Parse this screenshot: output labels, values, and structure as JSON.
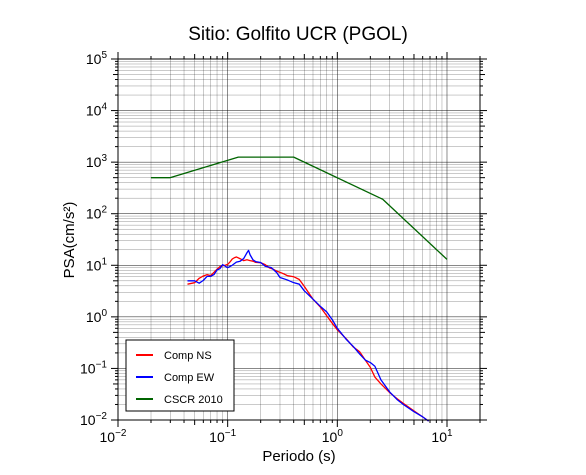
{
  "chart_data": {
    "type": "line",
    "title": "Sitio: Golfito UCR (PGOL)",
    "xlabel": "Periodo (s)",
    "ylabel": "PSA(cm/s²)",
    "x_scale": "log",
    "y_scale": "log",
    "xlim": [
      0.01,
      20
    ],
    "ylim": [
      0.01,
      100000
    ],
    "grid": true,
    "legend_position": "bottom-left",
    "x_ticks": [
      {
        "base": "10",
        "exp": "−2",
        "value": 0.01
      },
      {
        "base": "10",
        "exp": "−1",
        "value": 0.1
      },
      {
        "base": "10",
        "exp": "0",
        "value": 1
      },
      {
        "base": "10",
        "exp": "1",
        "value": 10
      }
    ],
    "y_ticks": [
      {
        "base": "10",
        "exp": "−2",
        "value": 0.01
      },
      {
        "base": "10",
        "exp": "−1",
        "value": 0.1
      },
      {
        "base": "10",
        "exp": "0",
        "value": 1
      },
      {
        "base": "10",
        "exp": "1",
        "value": 10
      },
      {
        "base": "10",
        "exp": "2",
        "value": 100
      },
      {
        "base": "10",
        "exp": "3",
        "value": 1000
      },
      {
        "base": "10",
        "exp": "4",
        "value": 10000
      },
      {
        "base": "10",
        "exp": "5",
        "value": 100000
      }
    ],
    "series": [
      {
        "name": "Comp NS",
        "color": "#ff0000",
        "points": [
          [
            0.043,
            4.3
          ],
          [
            0.05,
            4.6
          ],
          [
            0.055,
            5.6
          ],
          [
            0.06,
            6.2
          ],
          [
            0.065,
            6.6
          ],
          [
            0.07,
            6.3
          ],
          [
            0.075,
            7.3
          ],
          [
            0.08,
            8.4
          ],
          [
            0.085,
            9.4
          ],
          [
            0.09,
            9.8
          ],
          [
            0.095,
            10.0
          ],
          [
            0.1,
            10.4
          ],
          [
            0.105,
            11.6
          ],
          [
            0.11,
            13.2
          ],
          [
            0.115,
            14.0
          ],
          [
            0.12,
            14.5
          ],
          [
            0.13,
            13.4
          ],
          [
            0.14,
            12.3
          ],
          [
            0.15,
            12.8
          ],
          [
            0.16,
            12.3
          ],
          [
            0.17,
            12.0
          ],
          [
            0.18,
            11.4
          ],
          [
            0.2,
            11.2
          ],
          [
            0.22,
            10.3
          ],
          [
            0.24,
            8.9
          ],
          [
            0.26,
            8.4
          ],
          [
            0.28,
            7.7
          ],
          [
            0.3,
            7.3
          ],
          [
            0.32,
            6.9
          ],
          [
            0.35,
            6.3
          ],
          [
            0.4,
            6.0
          ],
          [
            0.45,
            5.3
          ],
          [
            0.5,
            3.9
          ],
          [
            0.6,
            2.2
          ],
          [
            0.7,
            1.55
          ],
          [
            0.8,
            1.05
          ],
          [
            0.9,
            0.75
          ],
          [
            1.0,
            0.56
          ],
          [
            1.2,
            0.38
          ],
          [
            1.4,
            0.26
          ],
          [
            1.6,
            0.21
          ],
          [
            1.8,
            0.145
          ],
          [
            2.0,
            0.105
          ],
          [
            2.2,
            0.068
          ],
          [
            2.5,
            0.05
          ],
          [
            3.0,
            0.034
          ],
          [
            3.5,
            0.026
          ],
          [
            4.0,
            0.021
          ],
          [
            5.0,
            0.015
          ],
          [
            6.0,
            0.0115
          ],
          [
            6.8,
            0.0095
          ]
        ]
      },
      {
        "name": "Comp EW",
        "color": "#0000ff",
        "points": [
          [
            0.043,
            5.0
          ],
          [
            0.05,
            5.0
          ],
          [
            0.055,
            4.5
          ],
          [
            0.06,
            5.1
          ],
          [
            0.065,
            6.1
          ],
          [
            0.07,
            6.1
          ],
          [
            0.075,
            6.6
          ],
          [
            0.08,
            8.1
          ],
          [
            0.085,
            8.6
          ],
          [
            0.09,
            10.3
          ],
          [
            0.1,
            9.0
          ],
          [
            0.11,
            10.0
          ],
          [
            0.12,
            11.5
          ],
          [
            0.13,
            12.0
          ],
          [
            0.14,
            13.5
          ],
          [
            0.15,
            17.5
          ],
          [
            0.155,
            19.5
          ],
          [
            0.16,
            16.0
          ],
          [
            0.17,
            12.8
          ],
          [
            0.18,
            11.8
          ],
          [
            0.2,
            11.3
          ],
          [
            0.22,
            9.6
          ],
          [
            0.25,
            9.0
          ],
          [
            0.28,
            7.2
          ],
          [
            0.3,
            5.8
          ],
          [
            0.35,
            5.2
          ],
          [
            0.4,
            4.6
          ],
          [
            0.45,
            4.3
          ],
          [
            0.5,
            3.2
          ],
          [
            0.6,
            2.2
          ],
          [
            0.7,
            1.6
          ],
          [
            0.8,
            1.25
          ],
          [
            0.9,
            0.88
          ],
          [
            1.0,
            0.6
          ],
          [
            1.2,
            0.37
          ],
          [
            1.4,
            0.265
          ],
          [
            1.6,
            0.19
          ],
          [
            1.8,
            0.145
          ],
          [
            2.0,
            0.13
          ],
          [
            2.2,
            0.11
          ],
          [
            2.5,
            0.06
          ],
          [
            3.0,
            0.035
          ],
          [
            3.5,
            0.025
          ],
          [
            4.0,
            0.02
          ],
          [
            5.0,
            0.0145
          ],
          [
            6.0,
            0.0115
          ],
          [
            6.8,
            0.0095
          ]
        ]
      },
      {
        "name": "CSCR 2010",
        "color": "#006400",
        "points": [
          [
            0.02,
            500
          ],
          [
            0.03,
            500
          ],
          [
            0.125,
            1250
          ],
          [
            0.4,
            1250
          ],
          [
            2.6,
            190
          ],
          [
            10.0,
            13
          ]
        ]
      }
    ]
  }
}
